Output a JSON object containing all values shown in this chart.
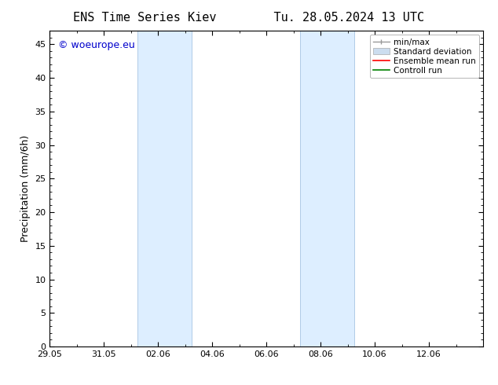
{
  "title_left": "ENS Time Series Kiev",
  "title_right": "Tu. 28.05.2024 13 UTC",
  "ylabel": "Precipitation (mm/6h)",
  "watermark": "© woeurope.eu",
  "watermark_color": "#0000cc",
  "ylim": [
    0,
    47
  ],
  "yticks": [
    0,
    5,
    10,
    15,
    20,
    25,
    30,
    35,
    40,
    45
  ],
  "xlim": [
    0,
    16
  ],
  "xtick_labels": [
    "29.05",
    "31.05",
    "02.06",
    "04.06",
    "06.06",
    "08.06",
    "10.06",
    "12.06"
  ],
  "xtick_positions": [
    0,
    2,
    4,
    6,
    8,
    10,
    12,
    14
  ],
  "shaded_regions": [
    {
      "start": 3.25,
      "end": 5.25
    },
    {
      "start": 9.25,
      "end": 11.25
    }
  ],
  "shade_color": "#ddeeff",
  "shade_border_color": "#99bbdd",
  "legend_entries": [
    {
      "label": "min/max",
      "color": "#aaaaaa"
    },
    {
      "label": "Standard deviation",
      "color": "#ccddef"
    },
    {
      "label": "Ensemble mean run",
      "color": "red"
    },
    {
      "label": "Controll run",
      "color": "green"
    }
  ],
  "background_color": "#ffffff",
  "title_fontsize": 11,
  "tick_fontsize": 8,
  "label_fontsize": 9,
  "watermark_fontsize": 9,
  "legend_fontsize": 7.5
}
